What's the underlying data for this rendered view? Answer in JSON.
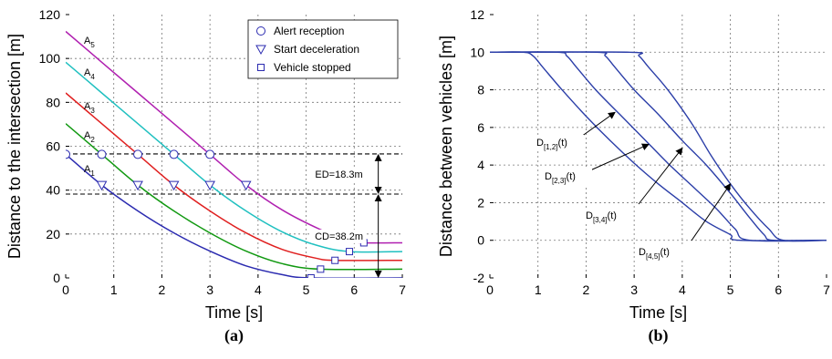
{
  "chart_data": [
    {
      "panel_label": "(a)",
      "type": "line",
      "xlabel": "Time [s]",
      "ylabel": "Distance to the intersection [m]",
      "xlim": [
        0,
        7
      ],
      "ylim": [
        0,
        120
      ],
      "xticks": [
        "0",
        "1",
        "2",
        "3",
        "4",
        "5",
        "6",
        "7"
      ],
      "yticks": [
        "0",
        "20",
        "40",
        "60",
        "80",
        "100",
        "120"
      ],
      "grid": true,
      "legend": {
        "placement": "top-right",
        "entries": [
          {
            "label": "Alert reception",
            "marker": "circle"
          },
          {
            "label": "Start deceleration",
            "marker": "triangle-down"
          },
          {
            "label": "Vehicle stopped",
            "marker": "square"
          }
        ]
      },
      "series": [
        {
          "name": "A1",
          "label_main": "A",
          "label_sub": "1",
          "color": "#2b2bb0",
          "values": [
            [
              0,
              56.3
            ],
            [
              0.75,
              42.3
            ],
            [
              1.5,
              30.5
            ],
            [
              2.25,
              20.5
            ],
            [
              3,
              12.2
            ],
            [
              3.75,
              5.5
            ],
            [
              4.5,
              1.5
            ],
            [
              5.1,
              0
            ],
            [
              7,
              0
            ]
          ]
        },
        {
          "name": "A2",
          "label_main": "A",
          "label_sub": "2",
          "color": "#119911",
          "values": [
            [
              0,
              70.3
            ],
            [
              0.75,
              56.3
            ],
            [
              1.5,
              42.3
            ],
            [
              2.25,
              30.5
            ],
            [
              3,
              20.5
            ],
            [
              3.75,
              12.2
            ],
            [
              4.5,
              6.5
            ],
            [
              5.3,
              4
            ],
            [
              7,
              4
            ]
          ]
        },
        {
          "name": "A3",
          "label_main": "A",
          "label_sub": "3",
          "color": "#e02020",
          "values": [
            [
              0,
              84.3
            ],
            [
              0.75,
              70.3
            ],
            [
              1.5,
              56.3
            ],
            [
              2.25,
              42.3
            ],
            [
              3,
              30.5
            ],
            [
              3.75,
              20.5
            ],
            [
              4.5,
              13
            ],
            [
              5.2,
              9
            ],
            [
              5.6,
              8
            ],
            [
              7,
              8
            ]
          ]
        },
        {
          "name": "A4",
          "label_main": "A",
          "label_sub": "4",
          "color": "#20c0c0",
          "values": [
            [
              0,
              98.3
            ],
            [
              0.75,
              84.3
            ],
            [
              1.5,
              70.3
            ],
            [
              2.25,
              56.3
            ],
            [
              3,
              42.3
            ],
            [
              3.75,
              30.5
            ],
            [
              4.5,
              21
            ],
            [
              5.2,
              15
            ],
            [
              5.9,
              12
            ],
            [
              7,
              12
            ]
          ]
        },
        {
          "name": "A5",
          "label_main": "A",
          "label_sub": "5",
          "color": "#b020b0",
          "values": [
            [
              0,
              112.3
            ],
            [
              0.75,
              98.3
            ],
            [
              1.5,
              84.3
            ],
            [
              2.25,
              70.3
            ],
            [
              3,
              56.3
            ],
            [
              3.75,
              42.3
            ],
            [
              4.5,
              31
            ],
            [
              5.3,
              22
            ],
            [
              5.9,
              17
            ],
            [
              6.2,
              16
            ],
            [
              7,
              16
            ]
          ]
        }
      ],
      "markers": {
        "alert_reception": [
          [
            0,
            56.3
          ],
          [
            0.75,
            56.3
          ],
          [
            1.5,
            56.3
          ],
          [
            2.25,
            56.3
          ],
          [
            3,
            56.3
          ]
        ],
        "start_deceleration": [
          [
            0.75,
            42.3
          ],
          [
            1.5,
            42.3
          ],
          [
            2.25,
            42.3
          ],
          [
            3,
            42.3
          ],
          [
            3.75,
            42.3
          ]
        ],
        "vehicle_stopped": [
          [
            5.1,
            0
          ],
          [
            5.3,
            4
          ],
          [
            5.6,
            8
          ],
          [
            5.9,
            12
          ],
          [
            6.2,
            16
          ]
        ]
      },
      "reference_lines": [
        56.5,
        38.2
      ],
      "annotations": [
        {
          "text": "ED=18.3m",
          "from": 38.2,
          "to": 56.5
        },
        {
          "text": "CD=38.2m",
          "from": 0,
          "to": 38.2
        }
      ]
    },
    {
      "panel_label": "(b)",
      "type": "line",
      "xlabel": "Time [s]",
      "ylabel": "Distance between vehicles [m]",
      "xlim": [
        0,
        7
      ],
      "ylim": [
        -2,
        12
      ],
      "xticks": [
        "0",
        "1",
        "2",
        "3",
        "4",
        "5",
        "6",
        "7"
      ],
      "yticks": [
        "-2",
        "0",
        "2",
        "4",
        "6",
        "8",
        "10",
        "12"
      ],
      "grid": true,
      "series": [
        {
          "name": "D[1,2](t)",
          "label_main": "D",
          "label_sub": "[1,2]",
          "label_tail": "(t)",
          "color": "#2b3ea8",
          "values": [
            [
              0,
              10
            ],
            [
              0.7,
              10
            ],
            [
              0.9,
              9.8
            ],
            [
              1.1,
              9.2
            ],
            [
              1.5,
              8
            ],
            [
              2,
              6.6
            ],
            [
              2.5,
              5.3
            ],
            [
              3,
              4.1
            ],
            [
              3.5,
              3
            ],
            [
              4,
              2
            ],
            [
              4.5,
              1
            ],
            [
              5,
              0.3
            ],
            [
              5.2,
              0
            ],
            [
              7,
              0
            ]
          ]
        },
        {
          "name": "D[2,3](t)",
          "label_main": "D",
          "label_sub": "[2,3]",
          "label_tail": "(t)",
          "color": "#2b3ea8",
          "values": [
            [
              0,
              10
            ],
            [
              1.4,
              10
            ],
            [
              1.6,
              9.8
            ],
            [
              1.8,
              9.2
            ],
            [
              2.2,
              8
            ],
            [
              2.7,
              6.7
            ],
            [
              3.2,
              5.4
            ],
            [
              3.7,
              4.1
            ],
            [
              4.2,
              2.9
            ],
            [
              4.7,
              1.7
            ],
            [
              5.1,
              0.6
            ],
            [
              5.4,
              0
            ],
            [
              7,
              0
            ]
          ]
        },
        {
          "name": "D[3,4](t)",
          "label_main": "D",
          "label_sub": "[3,4]",
          "label_tail": "(t)",
          "color": "#2b3ea8",
          "values": [
            [
              0,
              10
            ],
            [
              2.2,
              10
            ],
            [
              2.4,
              9.8
            ],
            [
              2.6,
              9.2
            ],
            [
              3,
              8
            ],
            [
              3.5,
              6.7
            ],
            [
              4,
              5.3
            ],
            [
              4.5,
              4
            ],
            [
              5,
              2.5
            ],
            [
              5.4,
              1.2
            ],
            [
              5.7,
              0.3
            ],
            [
              5.9,
              0
            ],
            [
              7,
              0
            ]
          ]
        },
        {
          "name": "D[4,5](t)",
          "label_main": "D",
          "label_sub": "[4,5]",
          "label_tail": "(t)",
          "color": "#2b3ea8",
          "values": [
            [
              0,
              10
            ],
            [
              2.9,
              10
            ],
            [
              3.1,
              9.8
            ],
            [
              3.3,
              9.2
            ],
            [
              3.7,
              8
            ],
            [
              4.2,
              6.2
            ],
            [
              4.6,
              4.5
            ],
            [
              5,
              3
            ],
            [
              5.4,
              1.7
            ],
            [
              5.8,
              0.6
            ],
            [
              6.1,
              0
            ],
            [
              7,
              0
            ]
          ]
        }
      ]
    }
  ]
}
